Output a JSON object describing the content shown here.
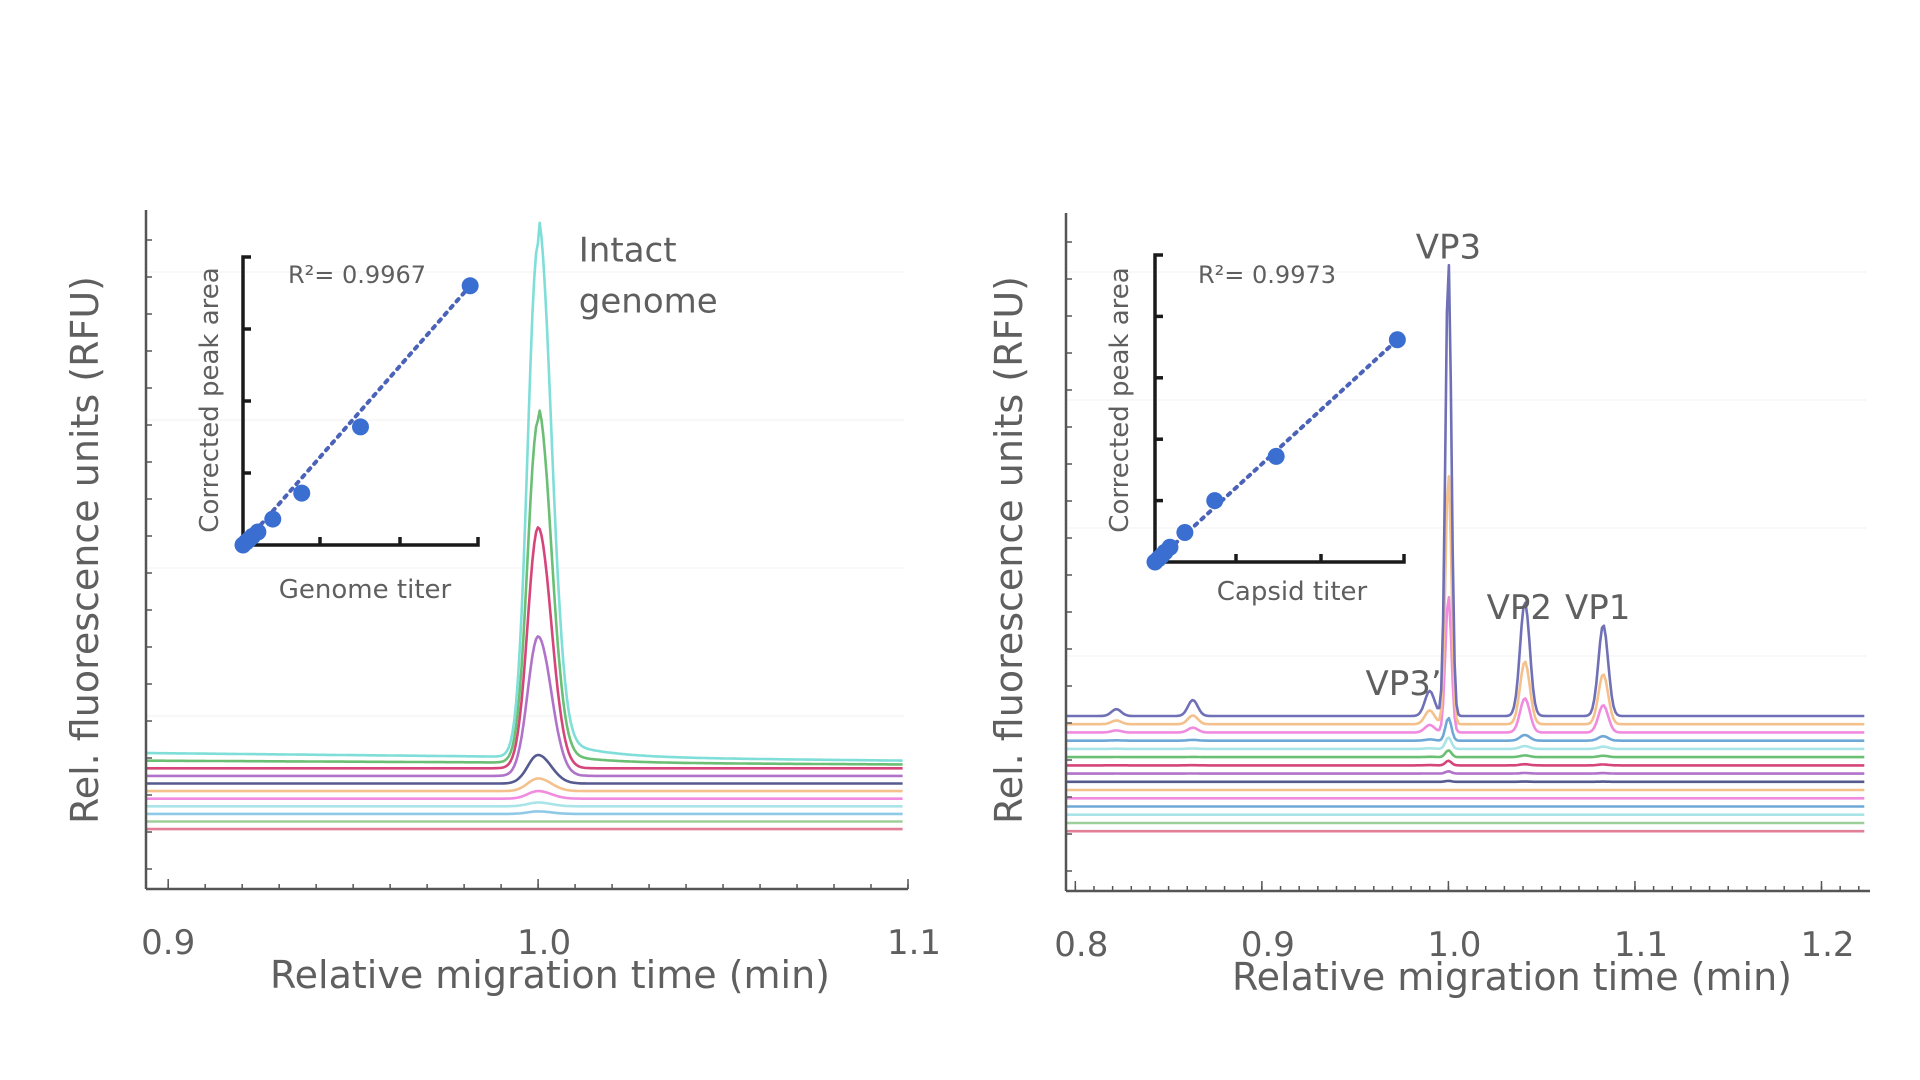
{
  "chart_data": [
    {
      "type": "line",
      "id": "genome",
      "xlabel": "Relative migration time (min)",
      "ylabel": "Rel. fluorescence units (RFU)",
      "xlim": [
        0.894,
        1.1
      ],
      "x_ticks": [
        0.9,
        1.0,
        1.1
      ],
      "x_tick_labels": [
        "0.9",
        "1.0",
        "1.1"
      ],
      "grid": true,
      "annotations": [
        {
          "text": "Intact",
          "x": 1.011,
          "y": 0.95
        },
        {
          "text": "genome",
          "x": 1.011,
          "y": 0.87
        }
      ],
      "peak_center": 1.0,
      "series": [
        {
          "name": "trace-1",
          "color": "#e07f97",
          "baseline": 0.055,
          "peak": 0.0
        },
        {
          "name": "trace-2",
          "color": "#9dcf9a",
          "baseline": 0.067,
          "peak": 0.0
        },
        {
          "name": "trace-3",
          "color": "#8fc9e8",
          "baseline": 0.079,
          "peak": 0.004
        },
        {
          "name": "trace-4",
          "color": "#a9e4e8",
          "baseline": 0.091,
          "peak": 0.006
        },
        {
          "name": "trace-5",
          "color": "#f08be0",
          "baseline": 0.103,
          "peak": 0.012
        },
        {
          "name": "trace-6",
          "color": "#f4c08c",
          "baseline": 0.115,
          "peak": 0.02
        },
        {
          "name": "trace-7",
          "color": "#555a8f",
          "baseline": 0.127,
          "peak": 0.045
        },
        {
          "name": "trace-8",
          "color": "#b073c9",
          "baseline": 0.139,
          "peak": 0.22
        },
        {
          "name": "trace-9",
          "color": "#d6457a",
          "baseline": 0.151,
          "peak": 0.38
        },
        {
          "name": "trace-10",
          "color": "#6bbf74",
          "baseline": 0.163,
          "peak": 0.54,
          "tail": 0.02
        },
        {
          "name": "trace-11",
          "color": "#7fded8",
          "baseline": 0.175,
          "peak": 0.81,
          "tail": 0.04
        }
      ],
      "inset": {
        "type": "scatter",
        "xlabel": "Genome titer",
        "ylabel": "Corrected peak area",
        "annotation": "R²= 0.9967",
        "fit": "linear-dotted",
        "xlim": [
          0,
          3
        ],
        "ylim": [
          0,
          4
        ],
        "x": [
          0.0,
          0.04,
          0.08,
          0.12,
          0.19,
          0.38,
          0.75,
          1.5,
          2.9
        ],
        "y": [
          0.0,
          0.04,
          0.08,
          0.12,
          0.18,
          0.36,
          0.72,
          1.64,
          3.6
        ],
        "color": "#3a6fd1"
      }
    },
    {
      "type": "line",
      "id": "capsid",
      "xlabel": "Relative migration time (min)",
      "ylabel": "Rel. fluorescence units (RFU)",
      "xlim": [
        0.795,
        1.226
      ],
      "x_ticks": [
        0.8,
        0.9,
        1.0,
        1.1,
        1.2
      ],
      "x_tick_labels": [
        "0.8",
        "0.9",
        "1.0",
        "1.1",
        "1.2"
      ],
      "grid": true,
      "annotations": [
        {
          "text": "VP3",
          "x": 1.0,
          "y": 0.96
        },
        {
          "text": "VP3’",
          "x": 0.976,
          "y": 0.27
        },
        {
          "text": "VP2",
          "x": 1.038,
          "y": 0.39
        },
        {
          "text": "VP1",
          "x": 1.08,
          "y": 0.39
        }
      ],
      "peaks": [
        {
          "name": "minor-1",
          "x": 0.822,
          "rel": 0.015
        },
        {
          "name": "minor-2",
          "x": 0.863,
          "rel": 0.035
        },
        {
          "name": "VP3'",
          "x": 0.99,
          "rel": 0.055
        },
        {
          "name": "VP3",
          "x": 1.0,
          "rel": 1.0
        },
        {
          "name": "VP2",
          "x": 1.041,
          "rel": 0.25
        },
        {
          "name": "VP1",
          "x": 1.083,
          "rel": 0.2
        }
      ],
      "series": [
        {
          "name": "trace-1",
          "color": "#e07f97",
          "baseline": 0.055,
          "scale": 0.0
        },
        {
          "name": "trace-2",
          "color": "#9dcf9a",
          "baseline": 0.068,
          "scale": 0.0
        },
        {
          "name": "trace-3",
          "color": "#a9e4e8",
          "baseline": 0.081,
          "scale": 0.0
        },
        {
          "name": "trace-4",
          "color": "#6fa8d6",
          "baseline": 0.094,
          "scale": 0.0
        },
        {
          "name": "trace-5",
          "color": "#f08be0",
          "baseline": 0.107,
          "scale": 0.0
        },
        {
          "name": "trace-6",
          "color": "#f4c08c",
          "baseline": 0.12,
          "scale": 0.0
        },
        {
          "name": "trace-7",
          "color": "#555a8f",
          "baseline": 0.133,
          "scale": 0.002
        },
        {
          "name": "trace-8",
          "color": "#b073c9",
          "baseline": 0.146,
          "scale": 0.005
        },
        {
          "name": "trace-9",
          "color": "#d6457a",
          "baseline": 0.159,
          "scale": 0.01
        },
        {
          "name": "trace-10",
          "color": "#6bbf74",
          "baseline": 0.172,
          "scale": 0.015
        },
        {
          "name": "trace-11",
          "color": "#a9e4e8",
          "baseline": 0.185,
          "scale": 0.025
        },
        {
          "name": "trace-12",
          "color": "#6fa8d6",
          "baseline": 0.198,
          "scale": 0.05
        },
        {
          "name": "trace-13",
          "color": "#f08be0",
          "baseline": 0.211,
          "scale": 0.3
        },
        {
          "name": "trace-14",
          "color": "#f4c08c",
          "baseline": 0.224,
          "scale": 0.55
        },
        {
          "name": "trace-15",
          "color": "#6f70b6",
          "baseline": 0.237,
          "scale": 1.0
        }
      ],
      "inset": {
        "type": "scatter",
        "xlabel": "Capsid titer",
        "ylabel": "Corrected peak area",
        "annotation": "R²= 0.9973",
        "fit": "linear-dotted",
        "xlim": [
          0,
          3
        ],
        "ylim": [
          0,
          5
        ],
        "x": [
          0.0,
          0.04,
          0.08,
          0.12,
          0.18,
          0.36,
          0.72,
          1.46,
          2.92
        ],
        "y": [
          0.0,
          0.05,
          0.1,
          0.16,
          0.24,
          0.48,
          1.0,
          1.72,
          3.62
        ],
        "color": "#3a6fd1"
      }
    }
  ]
}
